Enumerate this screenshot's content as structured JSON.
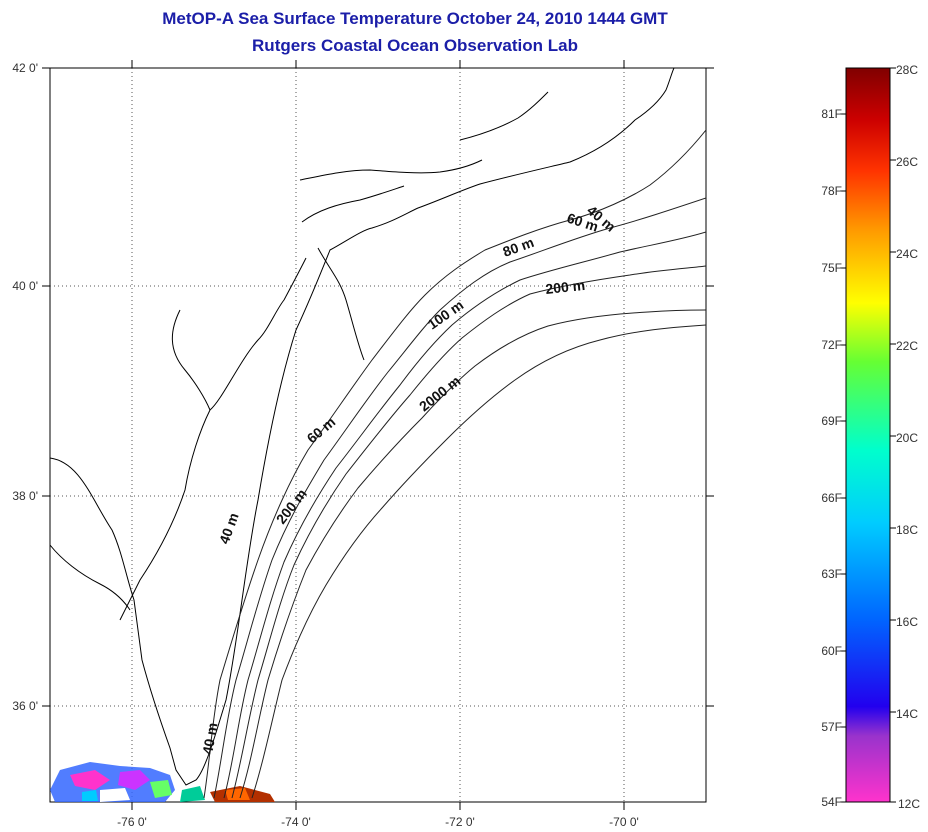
{
  "title": {
    "line1": "MetOP-A Sea Surface Temperature October 24, 2010 1444 GMT",
    "line2": "Rutgers Coastal Ocean Observation Lab"
  },
  "map": {
    "lon_range": [
      -77.0,
      -69.0
    ],
    "lat_range": [
      35.0,
      42.0
    ],
    "x_ticks": [
      "-76 0'",
      "-74 0'",
      "-72 0'",
      "-70 0'"
    ],
    "y_ticks": [
      "42 0'",
      "40 0'",
      "38 0'",
      "36 0'"
    ],
    "grid": "dotted",
    "contour_labels": [
      "40 m",
      "60 m",
      "80 m",
      "200 m",
      "100 m",
      "2000 m",
      "60 m",
      "200 m",
      "40 m",
      "40 m"
    ],
    "land_color": "#ffffff",
    "coastline_color": "#000000"
  },
  "colorbar": {
    "celsius_range": [
      12,
      28
    ],
    "celsius_labels": [
      "28C",
      "26C",
      "24C",
      "22C",
      "20C",
      "18C",
      "16C",
      "14C",
      "12C"
    ],
    "fahrenheit_labels": [
      "81F",
      "78F",
      "75F",
      "72F",
      "69F",
      "66F",
      "63F",
      "60F",
      "57F",
      "54F"
    ],
    "colors": [
      "#ff33cc",
      "#9933cc",
      "#2200ee",
      "#0066ff",
      "#00ccff",
      "#00ffcc",
      "#66ff33",
      "#ffff00",
      "#ff9900",
      "#ff3300",
      "#cc0000",
      "#800000"
    ]
  }
}
